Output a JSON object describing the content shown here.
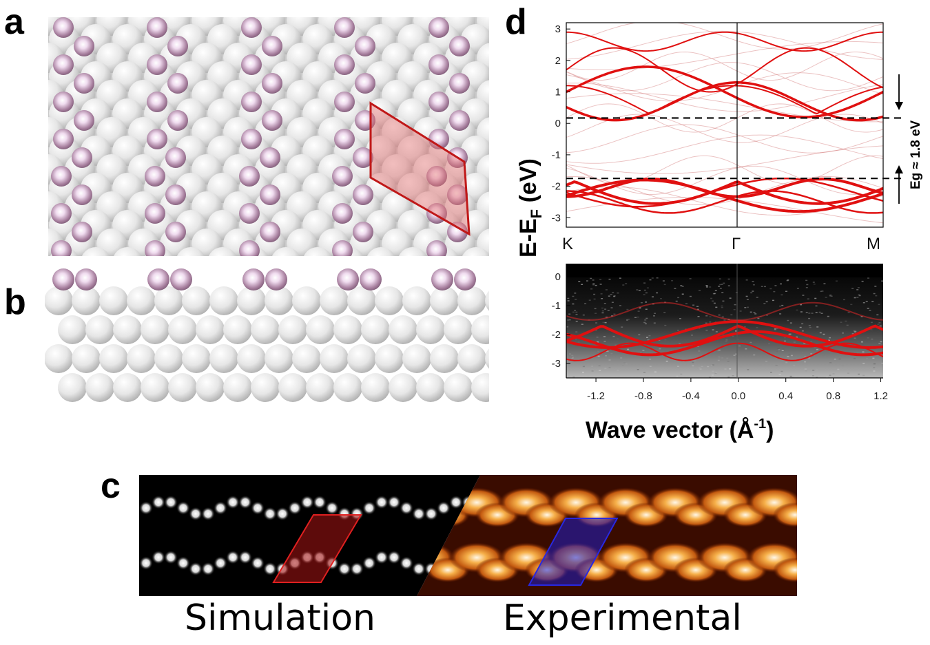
{
  "panels": {
    "a": "a",
    "b": "b",
    "c": "c",
    "d": "d"
  },
  "panel_c": {
    "left_caption": "Simulation",
    "right_caption": "Experimental"
  },
  "colors": {
    "adatom": "#a0789b",
    "substrate": "#e8e8e8",
    "unit_cell_red": "#cc1f1f",
    "unit_cell_blue": "#2a2ad8",
    "band_red": "#e01010"
  },
  "chart_data": [
    {
      "type": "scatter",
      "title": "",
      "ylabel": "E-E",
      "ylabel_subscript": "F",
      "ylabel_unit": " (eV)",
      "ylim": [
        -3.3,
        3.2
      ],
      "yticks": [
        "3",
        "2",
        "1",
        "0",
        "-1",
        "-2",
        "-3"
      ],
      "k_points": [
        "K",
        "Γ",
        "M"
      ],
      "gap_lines_eV": [
        0.17,
        -1.75
      ],
      "annotation": "Eg ≈ 1.8 eV",
      "series": [
        {
          "name": "calculated bands (weighted)",
          "description": "red band dispersion"
        }
      ]
    },
    {
      "type": "heatmap",
      "xlabel": "Wave vector (Å",
      "xlabel_sup": "-1",
      "xlabel_close": ")",
      "xlim": [
        -1.45,
        1.22
      ],
      "ylim": [
        -3.5,
        0.45
      ],
      "xticks": [
        "-1.2",
        "-0.8",
        "-0.4",
        "0.0",
        "0.4",
        "0.8",
        "1.2"
      ],
      "yticks": [
        "0",
        "-1",
        "-2",
        "-3"
      ],
      "overlay": "calculated bands on ARPES intensity"
    }
  ]
}
